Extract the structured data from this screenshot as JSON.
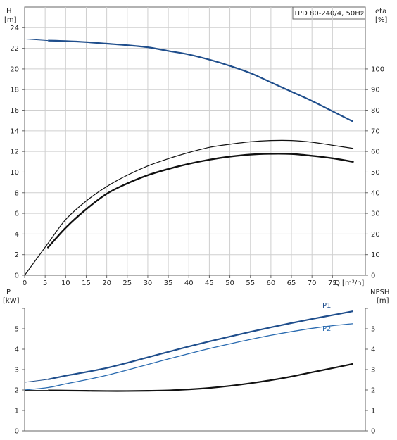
{
  "title_box": "TPD 80-240/4, 50Hz",
  "colors": {
    "head": "#1f4e8c",
    "eff_line": "#111111",
    "p1": "#1f4e8c",
    "p2": "#2a6bb0",
    "npsh": "#111111",
    "grid": "#cfcfcf",
    "frame": "#666666",
    "text": "#222222"
  },
  "chart_data": [
    {
      "name": "performance-chart",
      "type": "line",
      "x": {
        "label": "Q [m³/h]",
        "lim": [
          0,
          83
        ],
        "ticks": [
          0,
          5,
          10,
          15,
          20,
          25,
          30,
          35,
          40,
          45,
          50,
          55,
          60,
          65,
          70,
          75
        ]
      },
      "y_left": {
        "label": "H",
        "unit": "[m]",
        "lim": [
          0,
          26
        ],
        "ticks": [
          0,
          2,
          4,
          6,
          8,
          10,
          12,
          14,
          16,
          18,
          20,
          22,
          24
        ]
      },
      "y_right": {
        "label": "eta",
        "unit": "[%]",
        "lim": [
          0,
          130
        ],
        "ticks": [
          0,
          10,
          20,
          30,
          40,
          50,
          60,
          70,
          80,
          90,
          100
        ]
      },
      "grid": true,
      "series": [
        {
          "axis": "left",
          "style": "head",
          "x": [
            0,
            5.7,
            10,
            15,
            20,
            25,
            30,
            35,
            40,
            45,
            50,
            55,
            60,
            65,
            70,
            75,
            80
          ],
          "y": [
            22.9,
            22.75,
            22.7,
            22.6,
            22.45,
            22.3,
            22.1,
            21.75,
            21.4,
            20.9,
            20.3,
            19.6,
            18.7,
            17.8,
            16.9,
            15.9,
            14.9
          ]
        },
        {
          "axis": "right",
          "style": "eff_thin",
          "x": [
            0,
            5.7,
            10,
            15,
            20,
            25,
            30,
            35,
            40,
            45,
            50,
            55,
            60,
            65,
            70,
            75,
            80
          ],
          "y": [
            0,
            15.5,
            27,
            36,
            43,
            48.5,
            53,
            56.5,
            59.5,
            62,
            63.5,
            64.7,
            65.3,
            65.3,
            64.5,
            63,
            61.5
          ]
        },
        {
          "axis": "right",
          "style": "eff_thick",
          "x": [
            5.7,
            10,
            15,
            20,
            25,
            30,
            35,
            40,
            45,
            50,
            55,
            60,
            65,
            70,
            75,
            80
          ],
          "y": [
            13.5,
            23,
            32,
            39.5,
            44.5,
            48.5,
            51.5,
            54,
            56,
            57.5,
            58.5,
            58.9,
            58.8,
            57.9,
            56.7,
            55
          ]
        }
      ]
    },
    {
      "name": "power-npsh-chart",
      "type": "line",
      "x": {
        "lim": [
          0,
          83
        ]
      },
      "y_left": {
        "label": "P",
        "unit": "[kW]",
        "lim": [
          0,
          6
        ],
        "ticks": [
          0,
          1,
          2,
          3,
          4,
          5
        ]
      },
      "y_right": {
        "label": "NPSH",
        "unit": "[m]",
        "lim": [
          0,
          6
        ],
        "ticks": [
          0,
          1,
          2,
          3,
          4,
          5
        ]
      },
      "grid": false,
      "series": [
        {
          "name": "P1",
          "axis": "left",
          "style": "p1",
          "x": [
            0,
            5.7,
            10,
            15,
            20,
            25,
            30,
            35,
            40,
            45,
            50,
            55,
            60,
            65,
            70,
            75,
            80
          ],
          "y": [
            2.38,
            2.52,
            2.7,
            2.88,
            3.08,
            3.33,
            3.6,
            3.87,
            4.13,
            4.38,
            4.62,
            4.85,
            5.07,
            5.28,
            5.48,
            5.67,
            5.86
          ]
        },
        {
          "name": "P2",
          "axis": "left",
          "style": "p2",
          "x": [
            0,
            5.7,
            10,
            15,
            20,
            25,
            30,
            35,
            40,
            45,
            50,
            55,
            60,
            65,
            70,
            75,
            80
          ],
          "y": [
            2.0,
            2.12,
            2.3,
            2.5,
            2.72,
            2.98,
            3.25,
            3.52,
            3.78,
            4.03,
            4.26,
            4.48,
            4.68,
            4.86,
            5.02,
            5.15,
            5.25
          ]
        },
        {
          "axis": "right",
          "style": "npsh",
          "x": [
            5.7,
            10,
            15,
            20,
            25,
            30,
            35,
            40,
            45,
            50,
            55,
            60,
            65,
            70,
            75,
            80
          ],
          "y": [
            1.98,
            1.97,
            1.96,
            1.95,
            1.95,
            1.96,
            1.98,
            2.03,
            2.1,
            2.2,
            2.33,
            2.48,
            2.66,
            2.87,
            3.07,
            3.28
          ]
        }
      ]
    }
  ]
}
